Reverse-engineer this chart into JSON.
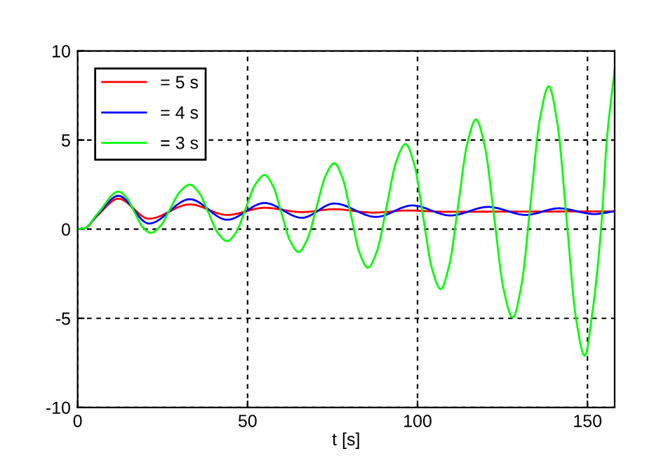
{
  "chart_data": {
    "type": "line",
    "xlabel": "t [s]",
    "xlim": [
      0,
      158
    ],
    "ylim": [
      -10,
      10
    ],
    "xticks": [
      0,
      50,
      100,
      150
    ],
    "yticks": [
      -10,
      -5,
      0,
      5,
      10
    ],
    "grid": true,
    "legend": "top left",
    "line_style": "solid",
    "marker": "none",
    "series": [
      {
        "name": "= 5 s",
        "color": "#ff0000",
        "x": [
          0,
          2,
          6,
          12,
          21,
          33,
          44,
          55,
          66,
          75.5,
          87,
          97,
          108,
          158
        ],
        "values": [
          0,
          0.05,
          0.8,
          1.71,
          0.59,
          1.39,
          0.8,
          1.2,
          0.96,
          1.12,
          0.93,
          1.05,
          0.98,
          1.0
        ]
      },
      {
        "name": "= 4 s",
        "color": "#0000ff",
        "x": [
          0,
          2,
          6,
          12,
          21,
          33,
          44,
          55,
          66,
          75.5,
          87.8,
          98.5,
          109.7,
          120.8,
          131.9,
          141.6,
          152,
          158
        ],
        "values": [
          0,
          0.05,
          0.85,
          1.87,
          0.32,
          1.68,
          0.53,
          1.47,
          0.64,
          1.44,
          0.69,
          1.33,
          0.77,
          1.25,
          0.8,
          1.17,
          0.85,
          1.01
        ]
      },
      {
        "name": "= 3 s",
        "color": "#00ff00",
        "x": [
          0,
          2,
          6,
          12,
          14.4,
          16.75,
          19.1,
          21.5,
          24.4,
          27.25,
          30.1,
          33,
          35.75,
          38.5,
          41.25,
          44,
          46.75,
          49.5,
          52.25,
          55,
          57.5,
          60,
          62.5,
          65,
          67.6,
          70.25,
          72.9,
          75.5,
          78,
          80.45,
          82.9,
          85.4,
          88.2,
          90.95,
          93.7,
          96.5,
          99.1,
          101.65,
          104.2,
          106.8,
          109.4,
          112,
          114.6,
          117.2,
          119.9,
          122.6,
          125.3,
          128,
          130.65,
          133.3,
          135.95,
          138.6,
          141.25,
          143.9,
          146.55,
          149.2,
          151.5,
          154,
          155.7,
          158
        ],
        "values": [
          0,
          0.05,
          0.9,
          2.11,
          1.77,
          0.95,
          0.13,
          -0.21,
          0.19,
          1.15,
          2.1,
          2.5,
          2.04,
          0.92,
          -0.21,
          -0.67,
          -0.13,
          1.19,
          2.5,
          3.04,
          2.41,
          0.88,
          -0.65,
          -1.28,
          -0.55,
          1.21,
          2.97,
          3.7,
          2.84,
          0.77,
          -1.3,
          -2.16,
          -1.15,
          1.31,
          3.77,
          4.78,
          3.59,
          0.71,
          -2.17,
          -3.36,
          -1.97,
          1.4,
          4.77,
          6.16,
          4.54,
          0.6,
          -3.34,
          -4.96,
          -3.06,
          1.53,
          6.12,
          8.02,
          5.81,
          0.46,
          -4.89,
          -7.1,
          -4.6,
          0,
          5,
          8.96
        ]
      }
    ]
  }
}
